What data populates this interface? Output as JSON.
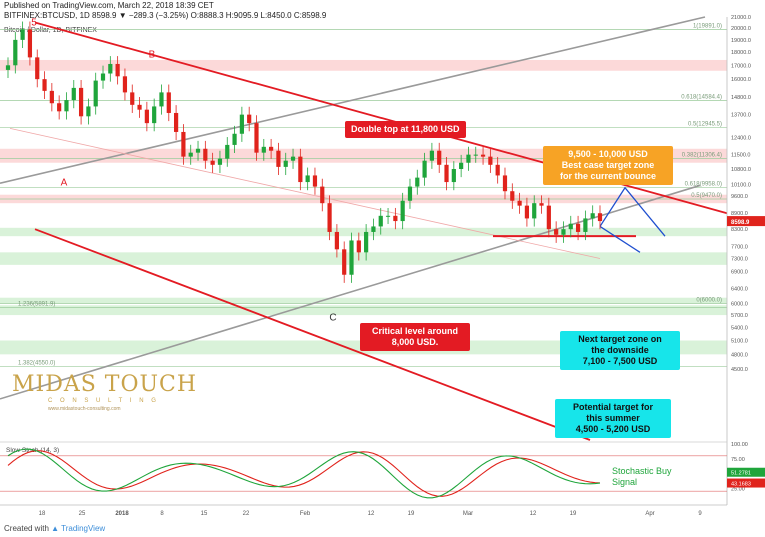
{
  "header": {
    "published": "Published on TradingView.com, March 22, 2018 18:39 CET",
    "ohlc": "BITFINEX:BTCUSD, 1D  8598.9  ▼ −289.3 (−3.25%)  O:8888.3  H:9095.9  L:8450.0  C:8598.9",
    "legend": "Bitcoin / Dollar, 1D, BITFINEX"
  },
  "annotations": {
    "double_top": "Double top at 11,800 USD",
    "best_case": "9,500 - 10,000 USD\nBest case target zone\nfor the current bounce",
    "critical": "Critical level around\n8,000 USD.",
    "next_target": "Next target zone on\nthe downside\n7,100 - 7,500 USD",
    "summer_target": "Potential target for\nthis summer\n4,500 - 5,200 USD",
    "stoch_signal": "Stochastic Buy\nSignal"
  },
  "logo": {
    "name": "MIDAS TOUCH",
    "sub": "C O N S U L T I N G",
    "url": "www.midastouch-consulting.com"
  },
  "footer": {
    "created": "Created with",
    "brand": "TradingView"
  },
  "colors": {
    "up": "#1fa53b",
    "down": "#e0231c",
    "trend": "#e31b23",
    "grey": "#9a9a9a",
    "fib_band": "#d9f2d9",
    "res_band": "#fcd9d9",
    "stoch_k": "#1fa53b",
    "stoch_d": "#e0231c"
  },
  "chart_data": {
    "type": "candlestick",
    "title": "Bitcoin / Dollar, 1D, BITFINEX",
    "y_scale": "log",
    "ylim": [
      3300,
      21000
    ],
    "y_ticks": [
      21000,
      20000,
      19000,
      18000,
      17000,
      16000,
      14800,
      13700,
      12400,
      11500,
      10800,
      10100,
      9600,
      8900,
      8300,
      7700,
      7300,
      6900,
      6400,
      6000,
      5700,
      5400,
      5100,
      4800,
      4500
    ],
    "x_ticks": [
      "18",
      "25",
      "2018",
      "8",
      "15",
      "22",
      "Feb",
      "12",
      "19",
      "Mar",
      "12",
      "19",
      "Apr",
      "9"
    ],
    "fib_levels": [
      {
        "label": "1(19891.0)",
        "value": 19891
      },
      {
        "label": "0.618(14584.4)",
        "value": 14584
      },
      {
        "label": "0.5(12945.5)",
        "value": 12945
      },
      {
        "label": "0.382(11306.4)",
        "value": 11306
      },
      {
        "label": "0.618(9958.0)",
        "value": 9958
      },
      {
        "label": "0.5(9470.0)",
        "value": 9470
      },
      {
        "label": "0(6000.0)",
        "value": 6000
      },
      {
        "label": "1.236(5891.9)",
        "value": 5892
      },
      {
        "label": "1.382(4550.0)",
        "value": 4550
      }
    ],
    "price_labels": [
      {
        "label": "8598.9",
        "value": 8598.9
      }
    ],
    "point_labels": [
      {
        "label": "B",
        "value": 17150
      },
      {
        "label": "A",
        "value": 10600
      },
      {
        "label": "C",
        "value": 5920
      },
      {
        "label": "5",
        "value": 19891
      }
    ],
    "closes": [
      17000,
      19000,
      19891,
      17600,
      16000,
      15200,
      14400,
      13900,
      14600,
      15400,
      13600,
      14200,
      15900,
      16400,
      17100,
      16200,
      15100,
      14300,
      14000,
      13200,
      14200,
      15100,
      13800,
      12700,
      11400,
      11600,
      11800,
      11200,
      11000,
      11300,
      12000,
      12600,
      13700,
      13200,
      11600,
      11900,
      11700,
      10900,
      11200,
      11400,
      10200,
      10500,
      10000,
      9300,
      8200,
      7600,
      6800,
      7900,
      7500,
      8200,
      8400,
      8800,
      8800,
      8600,
      9400,
      10000,
      10400,
      11200,
      11700,
      11000,
      10200,
      10800,
      11100,
      11500,
      11500,
      11400,
      11000,
      10500,
      9800,
      9400,
      9200,
      8700,
      9300,
      9200,
      8300,
      8100,
      8300,
      8500,
      8200,
      8700,
      8900,
      8600
    ],
    "stoch_labels": [
      {
        "label": "Slow Stoch (14, 3)"
      },
      {
        "label": "51.2781",
        "value": 51.28
      },
      {
        "label": "43.1683",
        "value": 43.17
      }
    ],
    "stoch_ticks": [
      100,
      75,
      50,
      25
    ]
  }
}
